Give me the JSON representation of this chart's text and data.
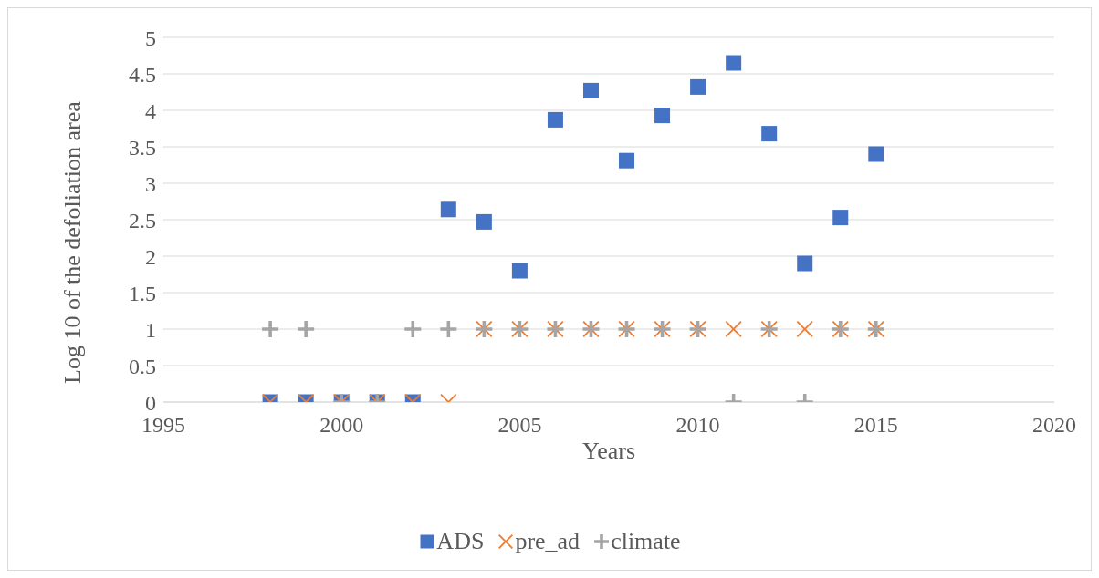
{
  "chart_data": {
    "type": "scatter",
    "xlabel": "Years",
    "ylabel": "Log 10 of the defoliation area",
    "xlim": [
      1995,
      2020
    ],
    "xticks": [
      1995,
      2000,
      2005,
      2010,
      2015,
      2020
    ],
    "ylim": [
      0,
      5
    ],
    "yticks": [
      0,
      0.5,
      1,
      1.5,
      2,
      2.5,
      3,
      3.5,
      4,
      4.5,
      5
    ],
    "grid": "y",
    "legend": "bottom",
    "x": [
      1998,
      1999,
      2000,
      2001,
      2002,
      2003,
      2004,
      2005,
      2006,
      2007,
      2008,
      2009,
      2010,
      2011,
      2012,
      2013,
      2014,
      2015
    ],
    "series": [
      {
        "name": "ADS",
        "color": "#4472c4",
        "marker": "square",
        "values": [
          0,
          0,
          0,
          0,
          0,
          2.64,
          2.47,
          1.8,
          3.87,
          4.27,
          3.31,
          3.93,
          4.32,
          4.65,
          3.68,
          1.9,
          2.53,
          3.4
        ]
      },
      {
        "name": "pre_ad",
        "color": "#ed7d31",
        "marker": "cross",
        "values": [
          0,
          0,
          0,
          0,
          0,
          0,
          1,
          1,
          1,
          1,
          1,
          1,
          1,
          1,
          1,
          1,
          1,
          1
        ]
      },
      {
        "name": "climate",
        "color": "#a5a5a5",
        "marker": "plus",
        "values": [
          1,
          1,
          0,
          0,
          1,
          1,
          1,
          1,
          1,
          1,
          1,
          1,
          1,
          0,
          1,
          0,
          1,
          1
        ]
      }
    ]
  }
}
